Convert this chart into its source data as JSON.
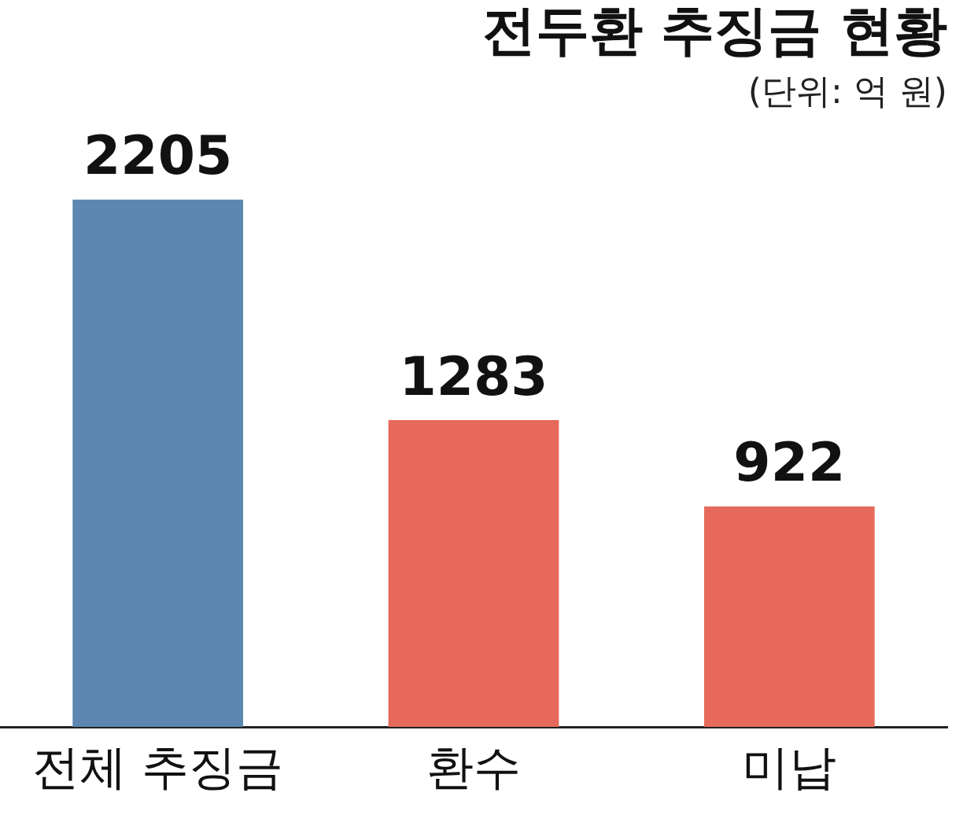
{
  "chart_data": {
    "type": "bar",
    "title": "전두환 추징금 현황",
    "subtitle": "(단위: 억 원)",
    "categories": [
      "전체 추징금",
      "환수",
      "미납"
    ],
    "values": [
      2205,
      1283,
      922
    ],
    "colors": [
      "#5b87b0",
      "#e6695c",
      "#e6695c"
    ],
    "data_labels": true,
    "grid": false,
    "legend": false
  }
}
